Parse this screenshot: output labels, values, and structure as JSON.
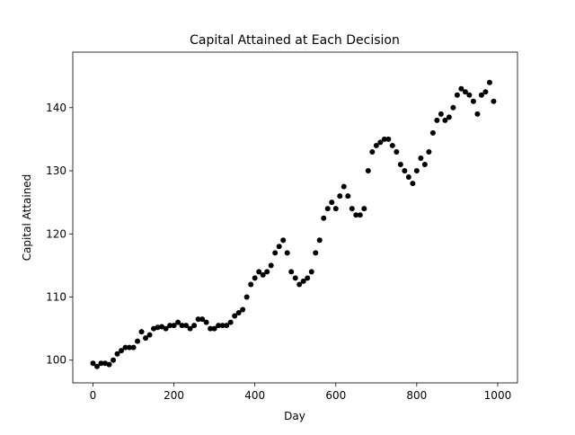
{
  "chart_data": {
    "type": "scatter",
    "title": "Capital Attained at Each Decision",
    "xlabel": "Day",
    "ylabel": "Capital Attained",
    "color": "#000000",
    "x": [
      0,
      10,
      20,
      30,
      40,
      50,
      60,
      70,
      80,
      90,
      100,
      110,
      120,
      130,
      140,
      150,
      160,
      170,
      180,
      190,
      200,
      210,
      220,
      230,
      240,
      250,
      260,
      270,
      280,
      290,
      300,
      310,
      320,
      330,
      340,
      350,
      360,
      370,
      380,
      390,
      400,
      410,
      420,
      430,
      440,
      450,
      460,
      470,
      480,
      490,
      500,
      510,
      520,
      530,
      540,
      550,
      560,
      570,
      580,
      590,
      600,
      610,
      620,
      630,
      640,
      650,
      660,
      670,
      680,
      690,
      700,
      710,
      720,
      730,
      740,
      750,
      760,
      770,
      780,
      790,
      800,
      810,
      820,
      830,
      840,
      850,
      860,
      870,
      880,
      890,
      900,
      910,
      920,
      930,
      940,
      950,
      960,
      970,
      980,
      990
    ],
    "values": [
      99.5,
      99,
      99.5,
      99.5,
      99.3,
      100,
      101,
      101.5,
      102,
      102,
      102,
      103,
      104.5,
      103.5,
      104,
      105,
      105.2,
      105.3,
      105,
      105.5,
      105.5,
      106,
      105.5,
      105.5,
      105,
      105.5,
      106.5,
      106.5,
      106,
      105,
      105,
      105.5,
      105.5,
      105.5,
      106,
      107,
      107.5,
      108,
      110,
      112,
      113,
      114,
      113.5,
      114,
      115,
      117,
      118,
      119,
      117,
      114,
      113,
      112,
      112.5,
      113,
      114,
      117,
      119,
      122.5,
      124,
      125,
      124,
      126,
      127.5,
      126,
      124,
      123,
      123,
      124,
      130,
      133,
      134,
      134.5,
      135,
      135,
      134,
      133,
      131,
      130,
      129,
      128,
      130,
      132,
      131,
      133,
      136,
      138,
      139,
      138,
      138.5,
      140,
      142,
      143,
      142.5,
      142,
      141,
      139,
      142,
      142.5,
      144,
      141
    ],
    "xlim": [
      -49.95,
      1048.95
    ],
    "xticks": [
      0,
      200,
      400,
      600,
      800,
      1000
    ],
    "ylim": [
      96.4,
      148.8
    ],
    "yticks": [
      100,
      110,
      120,
      130,
      140
    ]
  }
}
